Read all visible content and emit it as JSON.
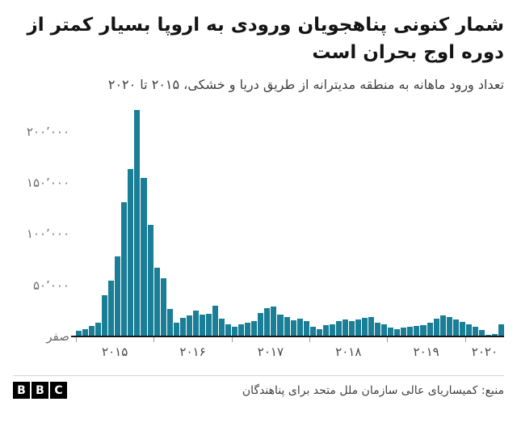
{
  "header": {
    "title": "شمار کنونی پناهجویان ورودی به اروپا بسیار کمتر از دوره اوج بحران است",
    "subtitle": "تعداد ورود ماهانه به منطقه مدیترانه از طریق دریا و خشکی، ۲۰۱۵ تا ۲۰۲۰"
  },
  "chart_data": {
    "type": "bar",
    "title": "شمار کنونی پناهجویان ورودی به اروپا بسیار کمتر از دوره اوج بحران است",
    "subtitle": "تعداد ورود ماهانه به منطقه مدیترانه از طریق دریا و خشکی، ۲۰۱۵ تا ۲۰۲۰",
    "xlabel": "",
    "ylabel": "",
    "x_unit": "month",
    "ylim": [
      0,
      225000
    ],
    "grid": false,
    "bar_color": "#1a7f96",
    "axis_color": "#1a1a1a",
    "y_ticks": [
      {
        "value": 200000,
        "label": "۲۰۰٬۰۰۰"
      },
      {
        "value": 150000,
        "label": "۱۵۰٬۰۰۰"
      },
      {
        "value": 100000,
        "label": "۱۰۰٬۰۰۰"
      },
      {
        "value": 50000,
        "label": "۵۰٬۰۰۰"
      },
      {
        "value": 0,
        "label": "صفر"
      }
    ],
    "years": [
      {
        "year": 2015,
        "label": "۲۰۱۵",
        "values": [
          5500,
          7300,
          10200,
          13600,
          40100,
          54700,
          78300,
          130800,
          163500,
          221400,
          155000,
          108700
        ]
      },
      {
        "year": 2016,
        "label": "۲۰۱۶",
        "values": [
          67400,
          57100,
          26900,
          13400,
          17800,
          20600,
          25100,
          21600,
          22100,
          30200,
          17300,
          11600
        ]
      },
      {
        "year": 2017,
        "label": "۲۰۱۷",
        "values": [
          9600,
          11900,
          13700,
          15200,
          22800,
          27400,
          28900,
          21300,
          19200,
          15800,
          17100,
          14700
        ]
      },
      {
        "year": 2018,
        "label": "۲۰۱۸",
        "values": [
          9300,
          7200,
          10700,
          12200,
          15100,
          16200,
          14700,
          16900,
          17900,
          19000,
          13800,
          11500
        ]
      },
      {
        "year": 2019,
        "label": "۲۰۱۹",
        "values": [
          8400,
          6900,
          8800,
          9100,
          10300,
          11200,
          13400,
          17600,
          20700,
          18900,
          16700,
          14200
        ]
      },
      {
        "year": 2020,
        "label": "۲۰۲۰",
        "values": [
          11900,
          9800,
          6400,
          1600,
          2300,
          12000
        ]
      }
    ]
  },
  "footer": {
    "logo_letters": [
      "B",
      "B",
      "C"
    ],
    "source": "منبع: کمیساریای عالی سازمان ملل متحد برای پناهندگان"
  }
}
